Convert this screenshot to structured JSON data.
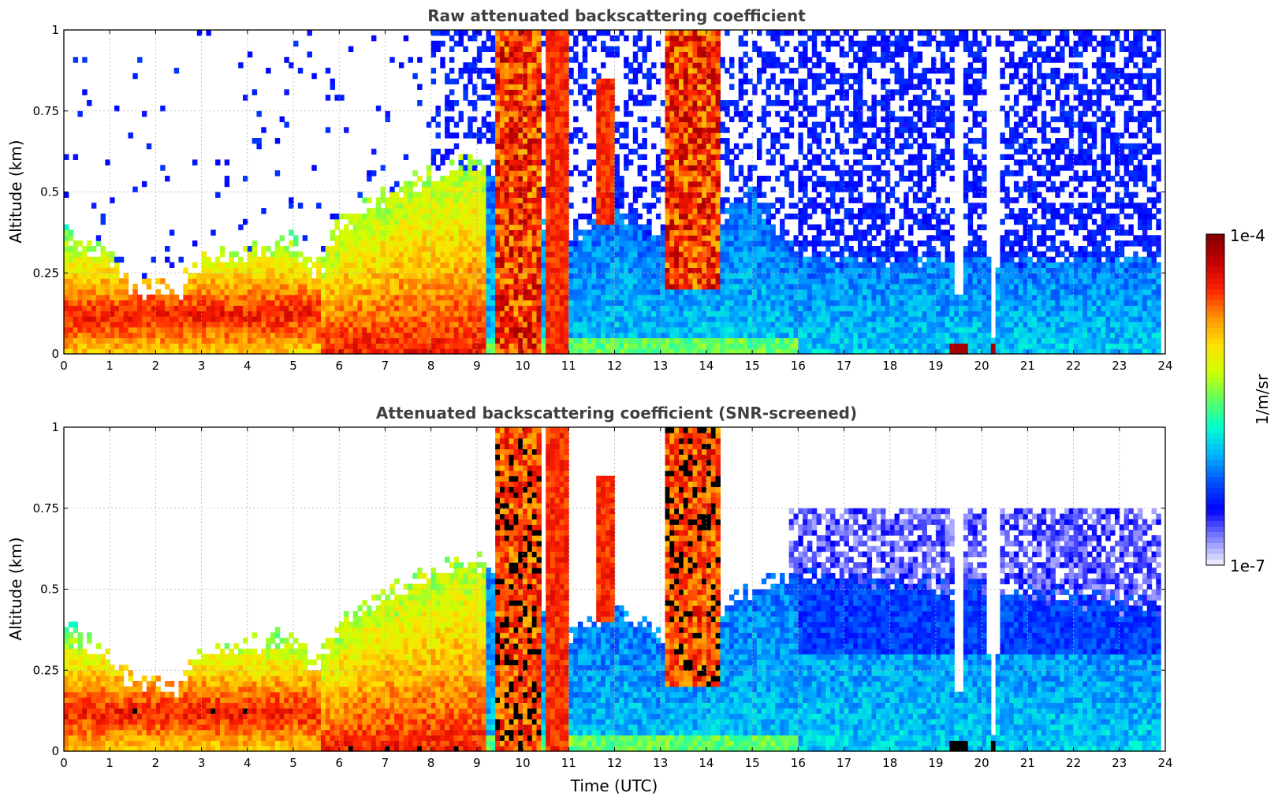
{
  "chart_data": [
    {
      "type": "heatmap",
      "title": "Raw attenuated backscattering coefficient",
      "xlabel": "",
      "ylabel": "Altitude (km)",
      "xlim": [
        0,
        24
      ],
      "ylim": [
        0,
        1
      ],
      "x_ticks": [
        "0",
        "1",
        "2",
        "3",
        "4",
        "5",
        "6",
        "7",
        "8",
        "9",
        "10",
        "11",
        "12",
        "13",
        "14",
        "15",
        "16",
        "17",
        "18",
        "19",
        "20",
        "21",
        "22",
        "23",
        "24"
      ],
      "y_ticks": [
        "0",
        "0.25",
        "0.5",
        "0.75",
        "1"
      ],
      "grid": true,
      "color_scale": "log",
      "mode": "raw",
      "cloud_events": [
        {
          "t_start": 9.4,
          "t_end": 10.4,
          "base_km": 0.0,
          "top_km": 1.0
        },
        {
          "t_start": 10.55,
          "t_end": 11.0,
          "base_km": 0.0,
          "top_km": 1.0
        },
        {
          "t_start": 13.1,
          "t_end": 14.3,
          "base_km": 0.2,
          "top_km": 1.0
        },
        {
          "t_start": 11.6,
          "t_end": 12.0,
          "base_km": 0.4,
          "top_km": 0.85
        }
      ],
      "aerosol_layer_top_km": [
        [
          0,
          0.38
        ],
        [
          1,
          0.3
        ],
        [
          1.5,
          0.2
        ],
        [
          2.5,
          0.2
        ],
        [
          3,
          0.3
        ],
        [
          4,
          0.32
        ],
        [
          5,
          0.35
        ],
        [
          5.5,
          0.25
        ],
        [
          6,
          0.4
        ],
        [
          7,
          0.48
        ],
        [
          8,
          0.55
        ],
        [
          9,
          0.6
        ],
        [
          11,
          0.35
        ],
        [
          12,
          0.45
        ],
        [
          13,
          0.35
        ],
        [
          14,
          0.4
        ],
        [
          15,
          0.5
        ],
        [
          16,
          0.3
        ],
        [
          24,
          0.3
        ]
      ],
      "clean_gaps_utc": [
        19.5,
        20.25
      ]
    },
    {
      "type": "heatmap",
      "title": "Attenuated backscattering coefficient (SNR-screened)",
      "xlabel": "Time (UTC)",
      "ylabel": "Altitude (km)",
      "xlim": [
        0,
        24
      ],
      "ylim": [
        0,
        1
      ],
      "x_ticks": [
        "0",
        "1",
        "2",
        "3",
        "4",
        "5",
        "6",
        "7",
        "8",
        "9",
        "10",
        "11",
        "12",
        "13",
        "14",
        "15",
        "16",
        "17",
        "18",
        "19",
        "20",
        "21",
        "22",
        "23",
        "24"
      ],
      "y_ticks": [
        "0",
        "0.25",
        "0.5",
        "0.75",
        "1"
      ],
      "grid": true,
      "color_scale": "log",
      "mode": "screened",
      "cloud_events": [
        {
          "t_start": 9.4,
          "t_end": 10.4,
          "base_km": 0.0,
          "top_km": 1.0
        },
        {
          "t_start": 10.55,
          "t_end": 11.0,
          "base_km": 0.0,
          "top_km": 1.0
        },
        {
          "t_start": 13.1,
          "t_end": 14.3,
          "base_km": 0.2,
          "top_km": 1.0
        },
        {
          "t_start": 11.6,
          "t_end": 12.0,
          "base_km": 0.4,
          "top_km": 0.85
        }
      ],
      "aerosol_layer_top_km": [
        [
          0,
          0.38
        ],
        [
          1,
          0.3
        ],
        [
          1.5,
          0.2
        ],
        [
          2.5,
          0.2
        ],
        [
          3,
          0.3
        ],
        [
          4,
          0.32
        ],
        [
          5,
          0.35
        ],
        [
          5.5,
          0.25
        ],
        [
          6,
          0.4
        ],
        [
          7,
          0.48
        ],
        [
          8,
          0.55
        ],
        [
          9,
          0.6
        ],
        [
          11,
          0.35
        ],
        [
          12,
          0.45
        ],
        [
          13,
          0.35
        ],
        [
          14,
          0.4
        ],
        [
          15,
          0.5
        ],
        [
          16,
          0.55
        ],
        [
          24,
          0.45
        ]
      ],
      "clean_gaps_utc": [
        19.5,
        20.25
      ]
    }
  ],
  "colorbar": {
    "max_label": "1e-4",
    "min_label": "1e-7",
    "unit": "1/m/sr",
    "colors": [
      "#f2f2ff",
      "#8080ff",
      "#0000ff",
      "#0050ff",
      "#00b4ff",
      "#00ffd0",
      "#60ff60",
      "#d0ff00",
      "#ffe000",
      "#ff9000",
      "#ff2000",
      "#c00000",
      "#800000"
    ]
  }
}
